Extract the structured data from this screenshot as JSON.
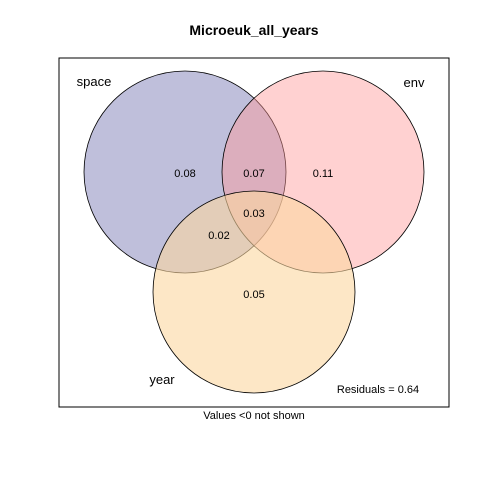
{
  "title": "Microeuk_all_years",
  "sets": [
    {
      "key": "space",
      "label": "space",
      "color": "#8080b8"
    },
    {
      "key": "env",
      "label": "env",
      "color": "#ff9999"
    },
    {
      "key": "year",
      "label": "year",
      "color": "#fbd7a0"
    }
  ],
  "regions": {
    "space_only": "0.08",
    "space_env": "0.07",
    "env_only": "0.11",
    "all_three": "0.03",
    "space_year": "0.02",
    "year_only": "0.05"
  },
  "residuals": "Residuals = 0.64",
  "footnote": "Values <0 not shown"
}
